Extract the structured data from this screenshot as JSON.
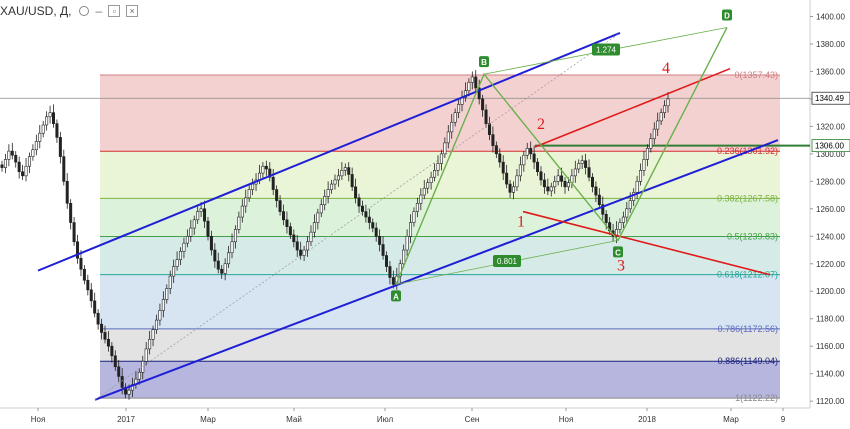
{
  "header": {
    "symbol": "XAU/USD, Д,",
    "collapse_glyph": "–",
    "hide_glyph": "▫",
    "close_glyph": "×",
    "collapse_icon": "minus-icon",
    "visibility_icon": "eye-icon",
    "close_icon": "close-icon"
  },
  "chart_data": {
    "type": "candlestick",
    "ylim": [
      1115,
      1412
    ],
    "price_ticks": [
      1120,
      1140,
      1160,
      1180,
      1200,
      1220,
      1240,
      1260,
      1280,
      1300,
      1320,
      1340,
      1360,
      1380,
      1400
    ],
    "time_labels": [
      "Ноя",
      "2017",
      "Мар",
      "Май",
      "Июл",
      "Сен",
      "Ноя",
      "2018",
      "Мар",
      "9"
    ],
    "current_price": {
      "label": "1340.49",
      "value": 1340.49,
      "color": "#000000"
    },
    "line_marker": {
      "label": "1306.00",
      "value": 1306.0,
      "color": "#2e7d32"
    },
    "fibonacci": [
      {
        "label": "0(1357.43)",
        "ratio": 0,
        "price": 1357.43,
        "color": "#d08080"
      },
      {
        "label": "0.236(1301.92)",
        "ratio": 0.236,
        "price": 1301.92,
        "color": "#d32f2f"
      },
      {
        "label": "0.382(1267.58)",
        "ratio": 0.382,
        "price": 1267.58,
        "color": "#7cb342"
      },
      {
        "label": "0.5(1239.83)",
        "ratio": 0.5,
        "price": 1239.83,
        "color": "#43a047"
      },
      {
        "label": "0.618(1212.07)",
        "ratio": 0.618,
        "price": 1212.07,
        "color": "#26a69a"
      },
      {
        "label": "0.786(1172.56)",
        "ratio": 0.786,
        "price": 1172.56,
        "color": "#5c6bc0"
      },
      {
        "label": "0.886(1149.04)",
        "ratio": 0.886,
        "price": 1149.04,
        "color": "#1a237e"
      },
      {
        "label": "1(1122.22)",
        "ratio": 1,
        "price": 1122.22,
        "color": "#888888"
      }
    ],
    "fib_zone_colors": [
      "#f2c9c9",
      "#e6f2cf",
      "#d6f0d4",
      "#cfe8e4",
      "#cfe0ee",
      "#dedede",
      "#a9a9d8"
    ],
    "harmonic_points": [
      {
        "label": "A",
        "price": 1205
      },
      {
        "label": "B",
        "price": 1358
      },
      {
        "label": "C",
        "price": 1237
      },
      {
        "label": "D",
        "price": 1392
      }
    ],
    "ratios": [
      {
        "label": "1.274"
      },
      {
        "label": "0.801"
      }
    ],
    "wave_labels": [
      "1",
      "2",
      "3",
      "4"
    ],
    "series": [
      {
        "name": "XAU/USD",
        "closes": [
          1290,
          1296,
          1302,
          1299,
          1294,
          1287,
          1284,
          1291,
          1298,
          1303,
          1309,
          1315,
          1321,
          1327,
          1330,
          1322,
          1312,
          1298,
          1280,
          1264,
          1250,
          1236,
          1224,
          1216,
          1208,
          1201,
          1193,
          1184,
          1176,
          1170,
          1165,
          1160,
          1153,
          1145,
          1138,
          1130,
          1125,
          1128,
          1132,
          1136,
          1141,
          1149,
          1158,
          1165,
          1172,
          1179,
          1186,
          1194,
          1202,
          1211,
          1218,
          1223,
          1229,
          1235,
          1240,
          1246,
          1252,
          1258,
          1260,
          1251,
          1240,
          1230,
          1222,
          1216,
          1213,
          1220,
          1228,
          1236,
          1245,
          1254,
          1262,
          1268,
          1274,
          1278,
          1281,
          1286,
          1291,
          1289,
          1283,
          1274,
          1266,
          1258,
          1252,
          1247,
          1241,
          1236,
          1230,
          1226,
          1230,
          1236,
          1243,
          1250,
          1257,
          1263,
          1269,
          1274,
          1278,
          1281,
          1284,
          1288,
          1290,
          1285,
          1276,
          1268,
          1262,
          1258,
          1254,
          1250,
          1246,
          1240,
          1234,
          1226,
          1218,
          1210,
          1205,
          1211,
          1220,
          1230,
          1240,
          1250,
          1258,
          1264,
          1270,
          1275,
          1279,
          1283,
          1288,
          1293,
          1300,
          1308,
          1316,
          1323,
          1330,
          1336,
          1341,
          1346,
          1352,
          1356,
          1348,
          1340,
          1332,
          1322,
          1314,
          1306,
          1300,
          1294,
          1286,
          1278,
          1272,
          1276,
          1284,
          1292,
          1299,
          1304,
          1300,
          1294,
          1287,
          1281,
          1276,
          1273,
          1276,
          1280,
          1284,
          1280,
          1276,
          1279,
          1284,
          1289,
          1293,
          1295,
          1290,
          1283,
          1276,
          1270,
          1263,
          1256,
          1250,
          1244,
          1240,
          1245,
          1250,
          1254,
          1260,
          1266,
          1272,
          1280,
          1288,
          1296,
          1304,
          1311,
          1318,
          1324,
          1330,
          1335,
          1340
        ]
      }
    ]
  }
}
